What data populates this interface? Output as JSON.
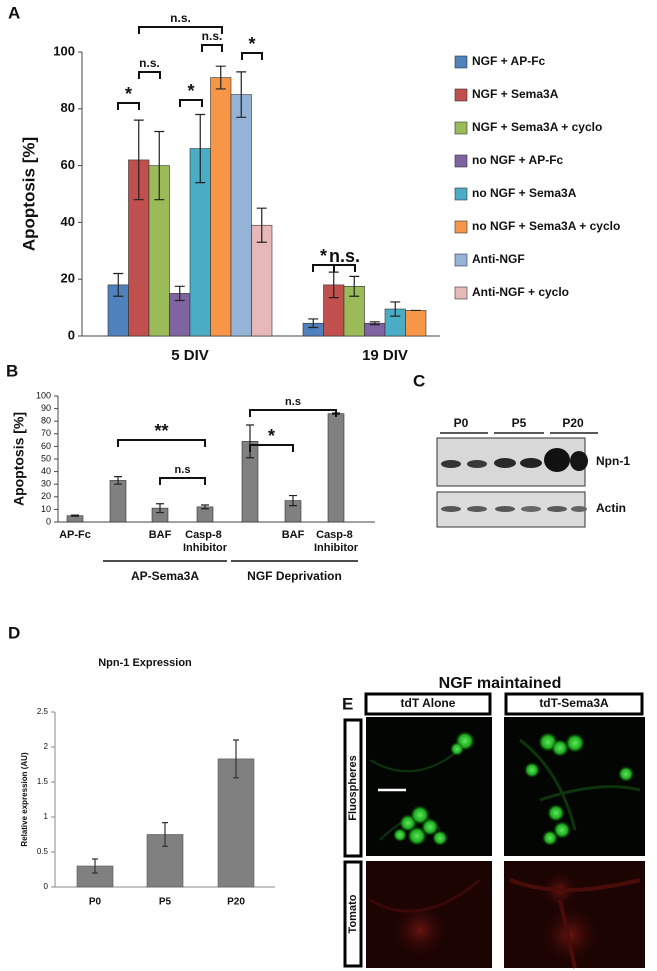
{
  "panel_labels": [
    "A",
    "B",
    "C",
    "D",
    "E"
  ],
  "chart_data": [
    {
      "type": "bar",
      "ylabel": "Apoptosis [%]",
      "categories": [
        "5 DIV",
        "19 DIV"
      ],
      "series": [
        {
          "name": "NGF + AP-Fc",
          "color": "#4f81bd",
          "values": [
            18,
            4.5
          ],
          "errors": [
            4,
            1.5
          ]
        },
        {
          "name": "NGF + Sema3A",
          "color": "#c0504d",
          "values": [
            62,
            18
          ],
          "errors": [
            14,
            4.5
          ]
        },
        {
          "name": "NGF + Sema3A + cyclo",
          "color": "#9bbb59",
          "values": [
            60,
            17.5
          ],
          "errors": [
            12,
            3.5
          ]
        },
        {
          "name": "no NGF + AP-Fc",
          "color": "#8064a2",
          "values": [
            15,
            4.5
          ],
          "errors": [
            2.5,
            0.5
          ]
        },
        {
          "name": "no NGF + Sema3A",
          "color": "#4bacc6",
          "values": [
            66,
            9.5
          ],
          "errors": [
            12,
            2.5
          ]
        },
        {
          "name": "no NGF + Sema3A + cyclo",
          "color": "#f79646",
          "values": [
            91,
            9
          ],
          "errors": [
            4,
            0
          ]
        },
        {
          "name": "Anti-NGF",
          "color": "#95b3d7",
          "values": [
            85,
            null
          ],
          "errors": [
            8,
            null
          ]
        },
        {
          "name": "Anti-NGF + cyclo",
          "color": "#e6b9b8",
          "values": [
            39,
            null
          ],
          "errors": [
            6,
            null
          ]
        }
      ],
      "ylim": [
        0,
        100
      ],
      "yticks": [
        0,
        20,
        40,
        60,
        80,
        100
      ],
      "annotations": [
        "n.s.",
        "*",
        "n.s.",
        "*",
        "n.s.",
        "*",
        "*",
        "n.s."
      ]
    },
    {
      "type": "bar",
      "ylabel": "Apoptosis [%]",
      "categories": [
        "AP-Fc",
        null,
        "BAF",
        "Casp-8 Inhibitor",
        null,
        "BAF",
        "Casp-8 Inhibitor"
      ],
      "groups": [
        "AP-Sema3A",
        "NGF Deprivation"
      ],
      "values": [
        5,
        33,
        11,
        12,
        64,
        17,
        86
      ],
      "errors": [
        0.5,
        3,
        3.5,
        1.5,
        13,
        4,
        0.5
      ],
      "color": "#808080",
      "ylim": [
        0,
        100
      ],
      "yticks": [
        0,
        10,
        20,
        30,
        40,
        50,
        60,
        70,
        80,
        90,
        100
      ],
      "annotations": [
        "**",
        "n.s",
        "*",
        "n.s"
      ]
    },
    {
      "type": "bar",
      "title": "Npn-1 Expression",
      "ylabel": "Relative expression (AU)",
      "categories": [
        "P0",
        "P5",
        "P20"
      ],
      "values": [
        0.3,
        0.75,
        1.83
      ],
      "errors": [
        0.1,
        0.17,
        0.27
      ],
      "color": "#808080",
      "ylim": [
        0,
        2.5
      ],
      "yticks": [
        0,
        0.5,
        1,
        1.5,
        2,
        2.5
      ]
    }
  ],
  "blot": {
    "lanes": [
      "P0",
      "P5",
      "P20"
    ],
    "rows": [
      "Npn-1",
      "Actin"
    ]
  },
  "imaging": {
    "title": "NGF maintained",
    "columns": [
      "tdT Alone",
      "tdT-Sema3A"
    ],
    "rows": [
      "Fluospheres",
      "Tomato"
    ]
  }
}
